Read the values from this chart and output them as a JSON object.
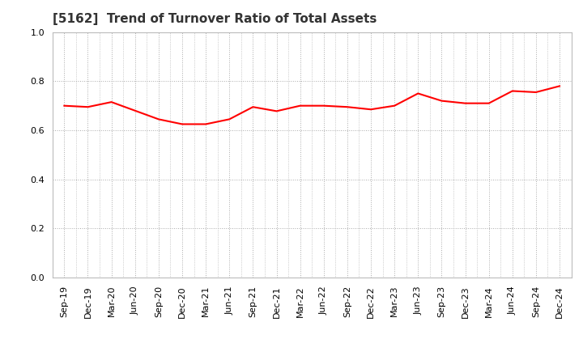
{
  "title": "[5162]  Trend of Turnover Ratio of Total Assets",
  "labels": [
    "Sep-19",
    "Dec-19",
    "Mar-20",
    "Jun-20",
    "Sep-20",
    "Dec-20",
    "Mar-21",
    "Jun-21",
    "Sep-21",
    "Dec-21",
    "Mar-22",
    "Jun-22",
    "Sep-22",
    "Dec-22",
    "Mar-23",
    "Jun-23",
    "Sep-23",
    "Dec-23",
    "Mar-24",
    "Jun-24",
    "Sep-24",
    "Dec-24"
  ],
  "values": [
    0.7,
    0.695,
    0.715,
    0.68,
    0.645,
    0.625,
    0.625,
    0.645,
    0.695,
    0.678,
    0.7,
    0.7,
    0.695,
    0.685,
    0.7,
    0.75,
    0.72,
    0.71,
    0.71,
    0.76,
    0.755,
    0.78
  ],
  "line_color": "#FF0000",
  "line_width": 1.5,
  "ylim": [
    0.0,
    1.0
  ],
  "yticks": [
    0.0,
    0.2,
    0.4,
    0.6,
    0.8,
    1.0
  ],
  "grid_color": "#aaaaaa",
  "title_fontsize": 11,
  "tick_fontsize": 8,
  "bg_color": "#ffffff",
  "plot_bg_color": "#ffffff"
}
